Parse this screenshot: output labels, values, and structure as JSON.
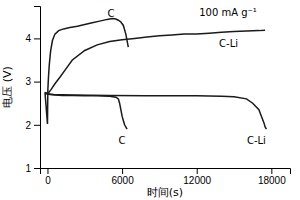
{
  "chart_data": {
    "type": "line",
    "xlabel": "时间(s)",
    "ylabel": "电压 (V)",
    "color": "#1a1a1a",
    "xlim": [
      -600,
      19500
    ],
    "ylim": [
      1.0,
      4.75
    ],
    "xticks": [
      0,
      6000,
      12000,
      18000
    ],
    "yticks": [
      1,
      2,
      3,
      4
    ],
    "series": [
      {
        "x": [
          -200,
          0,
          30,
          80,
          150,
          250,
          400,
          600,
          900,
          1300,
          1800,
          2400,
          3000,
          3600,
          4200,
          4800,
          5200,
          5500,
          5700,
          5900,
          6100,
          6300,
          6500
        ],
        "values": [
          2.75,
          2.02,
          2.8,
          3.1,
          3.4,
          3.7,
          3.95,
          4.1,
          4.18,
          4.22,
          4.25,
          4.28,
          4.32,
          4.36,
          4.4,
          4.44,
          4.46,
          4.45,
          4.42,
          4.38,
          4.3,
          4.1,
          3.8
        ]
      },
      {
        "x": [
          -200,
          0,
          100,
          300,
          600,
          1000,
          1500,
          2000,
          3000,
          4000,
          5000,
          6000,
          7000,
          8000,
          9000,
          10000,
          11000,
          11500,
          12000,
          13000,
          14000,
          15000,
          16000,
          17000,
          17500
        ],
        "values": [
          2.72,
          2.72,
          2.75,
          2.82,
          2.95,
          3.1,
          3.3,
          3.5,
          3.72,
          3.85,
          3.93,
          3.97,
          4.0,
          4.03,
          4.06,
          4.08,
          4.1,
          4.1,
          4.1,
          4.12,
          4.14,
          4.16,
          4.17,
          4.18,
          4.19
        ]
      },
      {
        "x": [
          -200,
          0,
          200,
          600,
          1200,
          2000,
          3000,
          4000,
          5000,
          5500,
          5700,
          5800,
          5900,
          6000,
          6100,
          6200,
          6400
        ],
        "values": [
          2.75,
          2.72,
          2.7,
          2.69,
          2.68,
          2.68,
          2.67,
          2.67,
          2.66,
          2.64,
          2.6,
          2.5,
          2.35,
          2.2,
          2.1,
          2.0,
          1.9
        ]
      },
      {
        "x": [
          -200,
          0,
          500,
          2000,
          5000,
          8000,
          10000,
          12000,
          14000,
          15000,
          16000,
          16500,
          17000,
          17200,
          17400,
          17500,
          17600
        ],
        "values": [
          2.74,
          2.72,
          2.7,
          2.69,
          2.68,
          2.67,
          2.67,
          2.67,
          2.66,
          2.65,
          2.6,
          2.5,
          2.35,
          2.2,
          2.05,
          1.95,
          1.9
        ]
      }
    ],
    "annotations": [
      {
        "text": "C",
        "x": 5100,
        "y": 4.5
      },
      {
        "text": "C-Li",
        "x": 13800,
        "y": 3.88
      },
      {
        "text": "C",
        "x": 6000,
        "y": 1.75
      },
      {
        "text": "C-Li",
        "x": 16800,
        "y": 1.75
      },
      {
        "text": "100 mA g⁻¹",
        "x": 12200,
        "y": 4.72
      }
    ]
  }
}
